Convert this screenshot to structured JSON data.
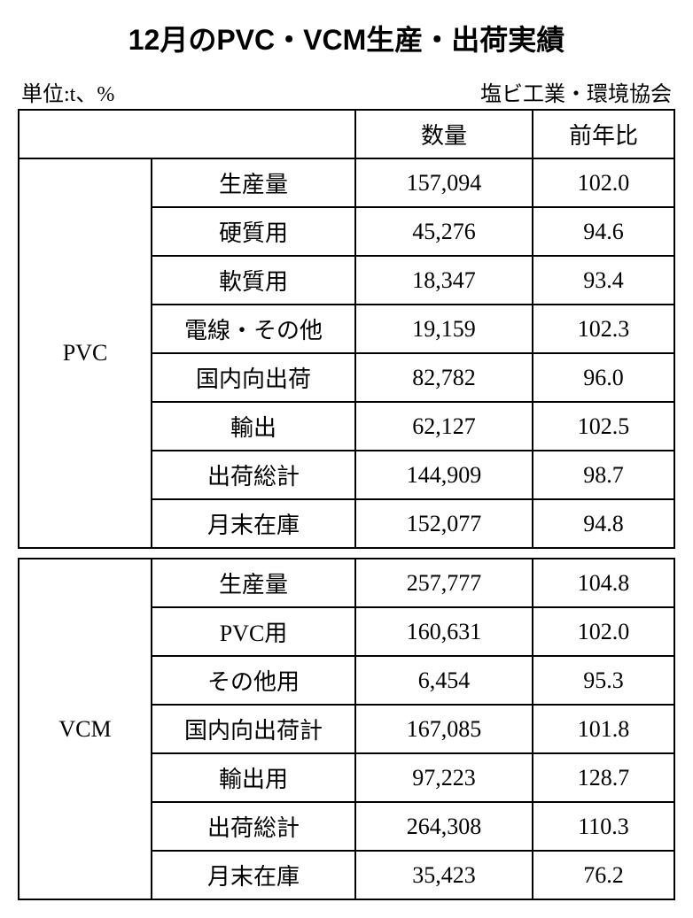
{
  "title": "12月のPVC・VCM生産・出荷実績",
  "unit_label": "単位:t、%",
  "source_label": "塩ビ工業・環境協会",
  "columns": {
    "quantity": "数量",
    "yoy": "前年比"
  },
  "sections": [
    {
      "name": "PVC",
      "rows": [
        {
          "label": "生産量",
          "quantity": "157,094",
          "yoy": "102.0"
        },
        {
          "label": "硬質用",
          "quantity": "45,276",
          "yoy": "94.6"
        },
        {
          "label": "軟質用",
          "quantity": "18,347",
          "yoy": "93.4"
        },
        {
          "label": "電線・その他",
          "quantity": "19,159",
          "yoy": "102.3"
        },
        {
          "label": "国内向出荷",
          "quantity": "82,782",
          "yoy": "96.0"
        },
        {
          "label": "輸出",
          "quantity": "62,127",
          "yoy": "102.5"
        },
        {
          "label": "出荷総計",
          "quantity": "144,909",
          "yoy": "98.7"
        },
        {
          "label": "月末在庫",
          "quantity": "152,077",
          "yoy": "94.8"
        }
      ]
    },
    {
      "name": "VCM",
      "rows": [
        {
          "label": "生産量",
          "quantity": "257,777",
          "yoy": "104.8"
        },
        {
          "label": "PVC用",
          "quantity": "160,631",
          "yoy": "102.0"
        },
        {
          "label": "その他用",
          "quantity": "6,454",
          "yoy": "95.3"
        },
        {
          "label": "国内向出荷計",
          "quantity": "167,085",
          "yoy": "101.8"
        },
        {
          "label": "輸出用",
          "quantity": "97,223",
          "yoy": "128.7"
        },
        {
          "label": "出荷総計",
          "quantity": "264,308",
          "yoy": "110.3"
        },
        {
          "label": "月末在庫",
          "quantity": "35,423",
          "yoy": "76.2"
        }
      ]
    }
  ],
  "styling": {
    "background_color": "#ffffff",
    "text_color": "#000000",
    "border_color": "#000000",
    "title_fontsize": 32,
    "body_fontsize": 26,
    "subtitle_fontsize": 24,
    "font_family_title": "MS Gothic",
    "font_family_body": "MS Mincho"
  }
}
